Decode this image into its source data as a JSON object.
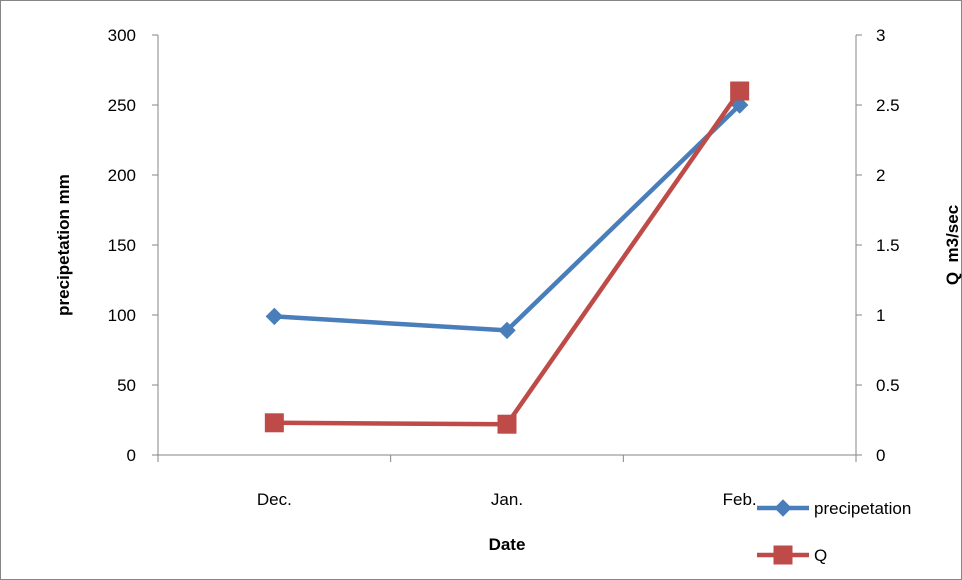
{
  "chart_data": {
    "type": "line",
    "title": "",
    "xlabel": "Date",
    "ylabel": "precipetation mm",
    "y2label": "Q  m3/sec",
    "categories": [
      "Dec.",
      "Jan.",
      "Feb."
    ],
    "ylim": [
      0,
      300
    ],
    "y2lim": [
      0,
      3
    ],
    "yticks": [
      0,
      50,
      100,
      150,
      200,
      250,
      300
    ],
    "y2ticks": [
      0,
      0.5,
      1,
      1.5,
      2,
      2.5,
      3
    ],
    "ytick_labels": [
      "0",
      "50",
      "100",
      "150",
      "200",
      "250",
      "300"
    ],
    "y2tick_labels": [
      "0",
      "0.5",
      "1",
      "1.5",
      "2",
      "2.5",
      "3"
    ],
    "grid": false,
    "legend_position": "bottom-right",
    "series": [
      {
        "name": "precipetation",
        "axis": "left",
        "marker": "diamond",
        "color": "#4a7ebb",
        "values": [
          99,
          89,
          250
        ]
      },
      {
        "name": "Q",
        "axis": "right",
        "marker": "square",
        "color": "#be4b48",
        "values": [
          0.23,
          0.22,
          2.6
        ]
      }
    ]
  }
}
